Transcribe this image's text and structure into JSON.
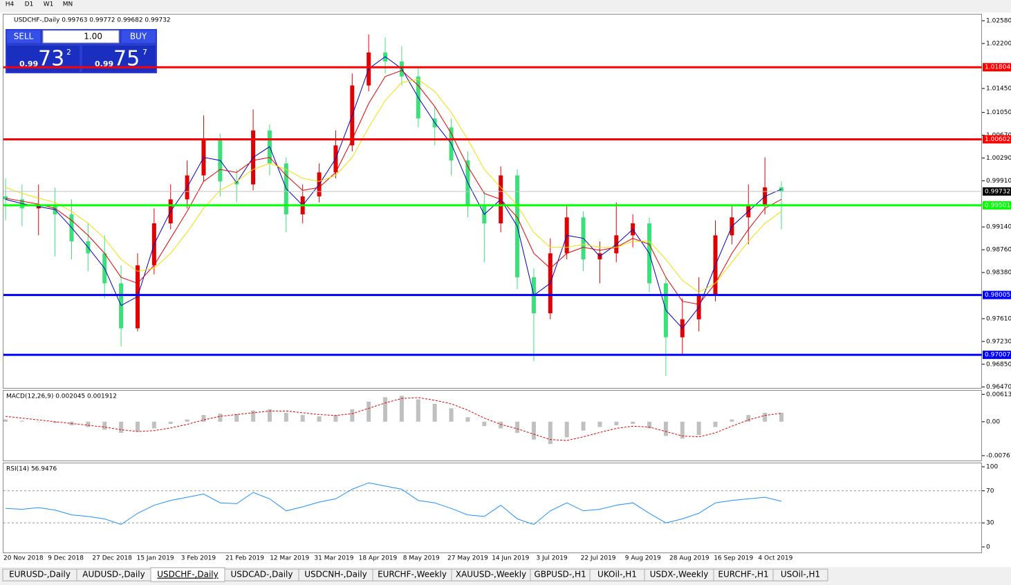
{
  "timeframes": [
    "H4",
    "D1",
    "W1",
    "MN"
  ],
  "trade_panel": {
    "sell": "SELL",
    "buy": "BUY",
    "lot": "1.00",
    "sell_prefix": "0.99",
    "sell_big": "73",
    "sell_small": "2",
    "buy_prefix": "0.99",
    "buy_big": "75",
    "buy_small": "7"
  },
  "tabs": [
    "EURUSD-,Daily",
    "AUDUSD-,Daily",
    "USDCHF-,Daily",
    "USDCAD-,Daily",
    "USDCNH-,Daily",
    "EURCHF-,Weekly",
    "XAUUSD-,Weekly",
    "GBPUSD-,H1",
    "UKOil-,H1",
    "USDX-,Weekly",
    "EURCHF-,H1",
    "USOil-,H1"
  ],
  "active_tab": 2,
  "chart_data": [
    {
      "type": "candlestick",
      "title": "USDCHF-,Daily 0.99763 0.99772 0.99682 0.99732",
      "up_color": "#e00000",
      "down_color": "#3ce07a",
      "x_labels": [
        "20 Nov 2018",
        "9 Dec 2018",
        "27 Dec 2018",
        "15 Jan 2019",
        "3 Feb 2019",
        "21 Feb 2019",
        "12 Mar 2019",
        "31 Mar 2019",
        "18 Apr 2019",
        "8 May 2019",
        "27 May 2019",
        "14 Jun 2019",
        "3 Jul 2019",
        "22 Jul 2019",
        "9 Aug 2019",
        "28 Aug 2019",
        "16 Sep 2019",
        "4 Oct 2019"
      ],
      "open": [
        0.9965,
        0.996,
        0.9945,
        0.995,
        0.9935,
        0.989,
        0.987,
        0.982,
        0.9745,
        0.985,
        0.992,
        0.996,
        1.0,
        1.006,
        0.999,
        0.9985,
        1.0075,
        1.002,
        0.9935,
        0.9965,
        1.0005,
        1.005,
        1.015,
        1.0205,
        1.019,
        1.0165,
        1.0095,
        1.008,
        1.0025,
        0.995,
        0.992,
        1.0,
        0.983,
        0.977,
        0.987,
        0.993,
        0.986,
        0.987,
        0.99,
        0.992,
        0.982,
        0.973,
        0.976,
        0.98,
        0.99,
        0.993,
        0.995,
        0.998
      ],
      "high": [
        0.9995,
        0.9985,
        0.9985,
        0.998,
        0.996,
        0.992,
        0.99,
        0.985,
        0.987,
        0.9945,
        0.9985,
        1.0025,
        1.01,
        1.007,
        1.001,
        1.011,
        1.0085,
        1.003,
        0.9985,
        1.002,
        1.0075,
        1.017,
        1.0235,
        1.023,
        1.0215,
        1.018,
        1.0115,
        1.0095,
        1.004,
        0.9975,
        1.0015,
        1.001,
        0.9845,
        0.9895,
        0.995,
        0.994,
        0.989,
        0.9955,
        0.9935,
        0.993,
        0.983,
        0.9795,
        0.983,
        0.9925,
        0.995,
        0.9985,
        1.003,
        0.999
      ],
      "low": [
        0.9925,
        0.9915,
        0.99,
        0.9865,
        0.986,
        0.984,
        0.9795,
        0.9715,
        0.974,
        0.9835,
        0.991,
        0.9945,
        0.999,
        0.9965,
        0.9955,
        0.9975,
        1.0,
        0.9905,
        0.992,
        0.9955,
        0.9995,
        1.004,
        1.014,
        1.017,
        1.015,
        1.008,
        1.005,
        1.0,
        0.993,
        0.9855,
        0.9905,
        0.981,
        0.969,
        0.976,
        0.986,
        0.984,
        0.982,
        0.9855,
        0.988,
        0.9805,
        0.9665,
        0.97,
        0.974,
        0.979,
        0.9885,
        0.9885,
        0.9935,
        0.991
      ],
      "close": [
        0.996,
        0.9945,
        0.995,
        0.9935,
        0.989,
        0.987,
        0.982,
        0.9745,
        0.985,
        0.992,
        0.996,
        1.0,
        1.006,
        0.999,
        0.9985,
        1.0075,
        1.002,
        0.9935,
        0.9965,
        1.0005,
        1.005,
        1.015,
        1.0205,
        1.019,
        1.0165,
        1.0095,
        1.008,
        1.0025,
        0.995,
        0.992,
        1.0,
        0.983,
        0.977,
        0.987,
        0.993,
        0.986,
        0.987,
        0.99,
        0.992,
        0.982,
        0.973,
        0.976,
        0.98,
        0.99,
        0.993,
        0.995,
        0.998,
        0.9973
      ],
      "series": [
        {
          "color": "#0000c0",
          "values": [
            0.996,
            0.9953,
            0.9948,
            0.9943,
            0.9913,
            0.988,
            0.9845,
            0.9783,
            0.9798,
            0.9885,
            0.994,
            0.998,
            1.003,
            1.0025,
            0.9988,
            1.003,
            1.0048,
            0.9978,
            0.995,
            0.9985,
            1.0028,
            1.01,
            1.0178,
            1.0198,
            1.0178,
            1.013,
            1.0088,
            1.0053,
            0.9988,
            0.9935,
            0.996,
            0.9915,
            0.98,
            0.982,
            0.99,
            0.9895,
            0.9865,
            0.9885,
            0.991,
            0.987,
            0.9775,
            0.9745,
            0.978,
            0.985,
            0.9915,
            0.994,
            0.9965,
            0.9977
          ]
        },
        {
          "color": "#e00000",
          "values": [
            0.9962,
            0.9957,
            0.9952,
            0.9945,
            0.9925,
            0.99,
            0.987,
            0.983,
            0.982,
            0.985,
            0.9895,
            0.994,
            0.999,
            1.001,
            1.0005,
            1.0025,
            1.003,
            1.0,
            0.9975,
            0.998,
            1.0005,
            1.006,
            1.012,
            1.0165,
            1.0175,
            1.015,
            1.0115,
            1.007,
            1.0015,
            0.997,
            0.996,
            0.993,
            0.987,
            0.9845,
            0.987,
            0.988,
            0.9875,
            0.988,
            0.9895,
            0.9885,
            0.983,
            0.979,
            0.9785,
            0.982,
            0.987,
            0.991,
            0.9945,
            0.996
          ]
        },
        {
          "color": "#f0e000",
          "values": [
            0.998,
            0.997,
            0.9962,
            0.9955,
            0.994,
            0.992,
            0.9895,
            0.986,
            0.984,
            0.9845,
            0.987,
            0.9905,
            0.9945,
            0.9975,
            0.999,
            1.001,
            1.002,
            1.001,
            0.9995,
            0.999,
            1.0,
            1.003,
            1.008,
            1.0125,
            1.0155,
            1.016,
            1.014,
            1.0105,
            1.006,
            1.001,
            0.998,
            0.995,
            0.9905,
            0.988,
            0.988,
            0.9885,
            0.988,
            0.988,
            0.989,
            0.989,
            0.986,
            0.9825,
            0.9805,
            0.982,
            0.9855,
            0.989,
            0.992,
            0.994
          ]
        }
      ],
      "levels": [
        {
          "value": 1.01804,
          "label": "1.01804",
          "color": "#ff0000"
        },
        {
          "value": 1.00602,
          "label": "1.00602",
          "color": "#ff0000"
        },
        {
          "value": 0.99501,
          "label": "0.99501",
          "color": "#00ff00"
        },
        {
          "value": 0.98005,
          "label": "0.98005",
          "color": "#0000ff"
        },
        {
          "value": 0.97007,
          "label": "0.97007",
          "color": "#0000ff"
        }
      ],
      "current": {
        "value": 0.99732,
        "label": "0.99732"
      },
      "ylim": [
        0.96455,
        1.02695
      ],
      "yticks": [
        {
          "value": 1.0258,
          "label": "1.02580"
        },
        {
          "value": 1.022,
          "label": "1.02200"
        },
        {
          "value": 1.0145,
          "label": "1.01450"
        },
        {
          "value": 1.0105,
          "label": "1.01050"
        },
        {
          "value": 1.0067,
          "label": "1.00670"
        },
        {
          "value": 1.0029,
          "label": "1.00290"
        },
        {
          "value": 0.9991,
          "label": "0.99910"
        },
        {
          "value": 0.9914,
          "label": "0.99140"
        },
        {
          "value": 0.9876,
          "label": "0.98760"
        },
        {
          "value": 0.9838,
          "label": "0.98380"
        },
        {
          "value": 0.9761,
          "label": "0.97610"
        },
        {
          "value": 0.9723,
          "label": "0.97230"
        },
        {
          "value": 0.9685,
          "label": "0.96850"
        },
        {
          "value": 0.9647,
          "label": "0.96470"
        }
      ]
    },
    {
      "type": "macd",
      "title": "MACD(12,26,9) 0.002045 0.001912",
      "color": "#c0c0c0",
      "signal_color": "#e00000",
      "values": [
        0.0005,
        0.0002,
        -0.0001,
        -0.0003,
        -0.0008,
        -0.0012,
        -0.0018,
        -0.0025,
        -0.0022,
        -0.0015,
        -0.0005,
        0.0005,
        0.0015,
        0.0018,
        0.0017,
        0.0025,
        0.0028,
        0.002,
        0.0015,
        0.0012,
        0.0015,
        0.0028,
        0.0045,
        0.0055,
        0.0058,
        0.005,
        0.004,
        0.003,
        0.001,
        -0.001,
        -0.0015,
        -0.0025,
        -0.004,
        -0.005,
        -0.0035,
        -0.002,
        -0.0012,
        -0.0008,
        -0.0005,
        -0.0015,
        -0.0032,
        -0.0038,
        -0.003,
        -0.0012,
        0.0005,
        0.0015,
        0.002,
        0.002
      ],
      "signal": [
        0.0012,
        0.0008,
        0.0004,
        0.0,
        -0.0004,
        -0.0008,
        -0.0012,
        -0.0018,
        -0.0022,
        -0.002,
        -0.0014,
        -0.0006,
        0.0004,
        0.0012,
        0.0016,
        0.002,
        0.0024,
        0.0024,
        0.002,
        0.0016,
        0.0014,
        0.0018,
        0.003,
        0.0042,
        0.0052,
        0.0054,
        0.0048,
        0.004,
        0.0026,
        0.0008,
        -0.0006,
        -0.0016,
        -0.0028,
        -0.004,
        -0.0042,
        -0.0034,
        -0.0024,
        -0.0015,
        -0.001,
        -0.0012,
        -0.0022,
        -0.0032,
        -0.0034,
        -0.0025,
        -0.001,
        0.0004,
        0.0014,
        0.0019
      ],
      "ylim": [
        -0.0087,
        0.0071
      ],
      "yticks": [
        0.00613,
        {
          "value": 0,
          "label": "0.00"
        },
        -0.00761
      ]
    },
    {
      "type": "rsi",
      "title": "RSI(14) 56.9476",
      "color": "#1e90ff",
      "values": [
        48,
        47,
        49,
        46,
        40,
        38,
        35,
        28,
        42,
        52,
        58,
        62,
        66,
        55,
        54,
        68,
        60,
        45,
        50,
        56,
        60,
        72,
        80,
        76,
        72,
        58,
        55,
        48,
        40,
        38,
        52,
        35,
        28,
        45,
        55,
        45,
        47,
        52,
        55,
        42,
        30,
        35,
        42,
        55,
        58,
        60,
        62,
        57
      ],
      "levels": [
        70,
        30
      ],
      "ylim": [
        -7.8,
        105.2
      ],
      "yticks": [
        100,
        70,
        30,
        0
      ]
    }
  ]
}
